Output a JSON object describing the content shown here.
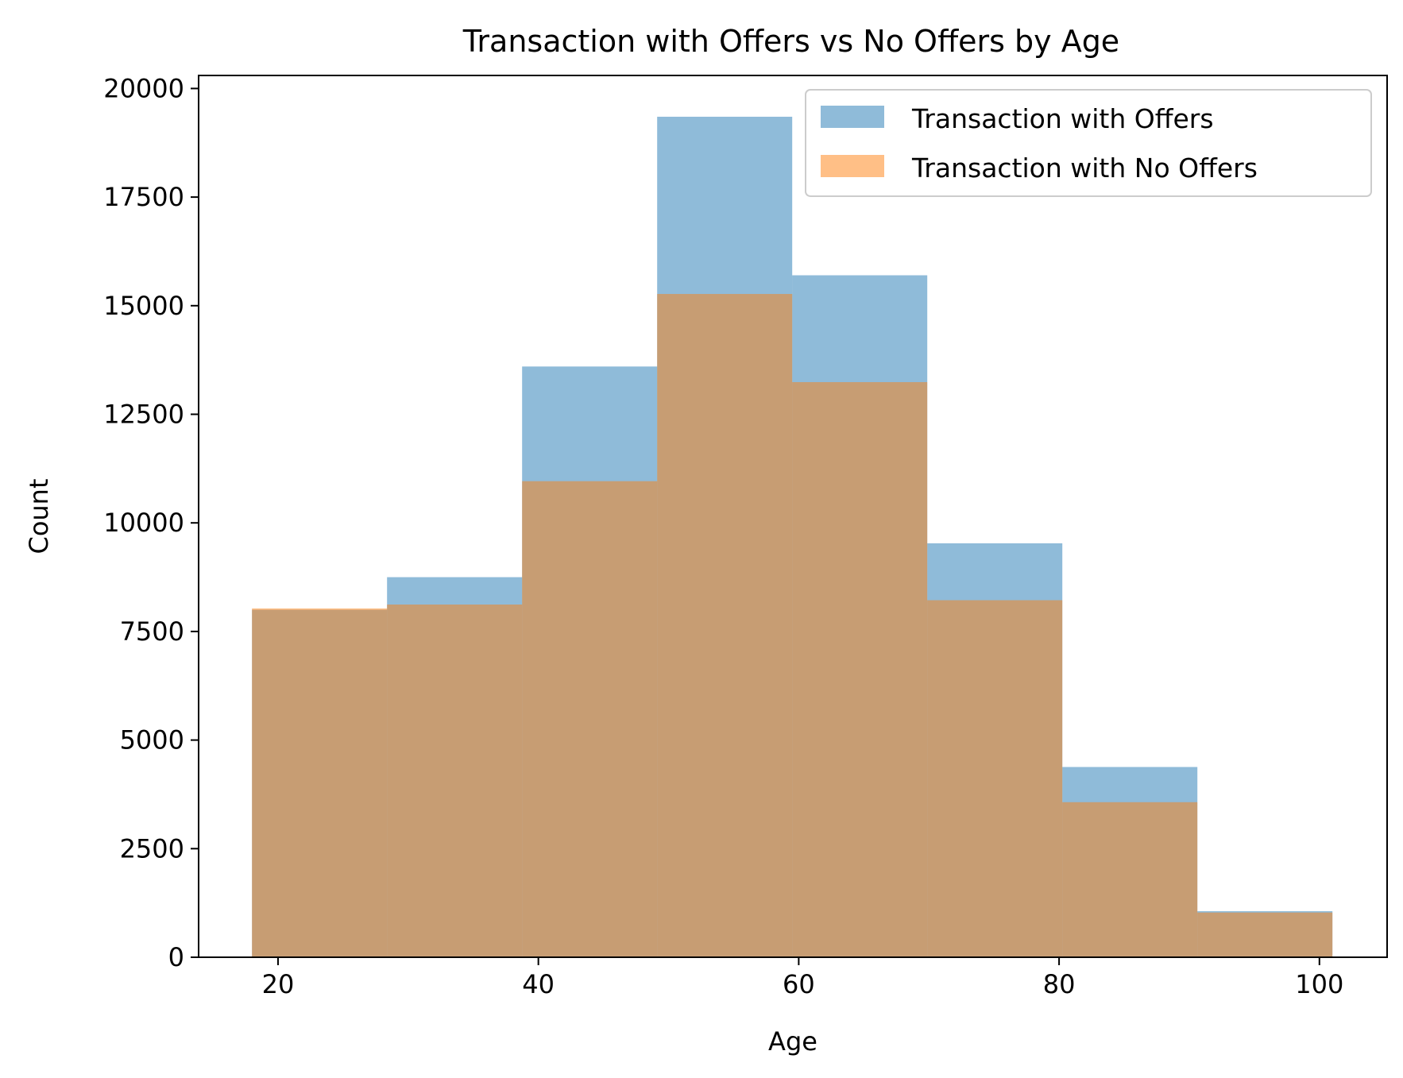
{
  "chart_data": {
    "type": "histogram",
    "title": "Transaction with Offers vs No Offers by Age",
    "xlabel": "Age",
    "ylabel": "Count",
    "xlim": [
      13.9,
      105.2
    ],
    "ylim": [
      0,
      20300
    ],
    "xticks": [
      20,
      40,
      60,
      80,
      100
    ],
    "xtick_labels": [
      "20",
      "40",
      "60",
      "80",
      "100"
    ],
    "yticks": [
      0,
      2500,
      5000,
      7500,
      10000,
      12500,
      15000,
      17500,
      20000
    ],
    "ytick_labels": [
      "0",
      "2500",
      "5000",
      "7500",
      "10000",
      "12500",
      "15000",
      "17500",
      "20000"
    ],
    "bin_edges": [
      18,
      28.375,
      38.75,
      49.125,
      59.5,
      69.875,
      80.25,
      90.625,
      101
    ],
    "series": [
      {
        "name": "Transaction with Offers",
        "color": "#1f77b4",
        "alpha": 0.5,
        "values": [
          8000,
          8750,
          13600,
          19350,
          15700,
          9530,
          4380,
          1060
        ]
      },
      {
        "name": "Transaction with No Offers",
        "color": "#ff7f0e",
        "alpha": 0.5,
        "values": [
          8030,
          8120,
          10960,
          15270,
          13240,
          8220,
          3570,
          1030
        ]
      }
    ],
    "legend_position": "top-right",
    "grid": false
  }
}
